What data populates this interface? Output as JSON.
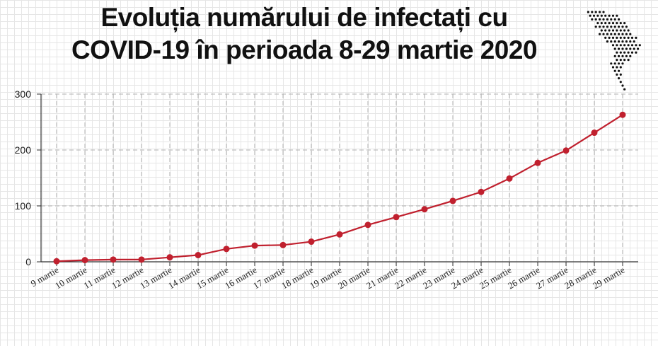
{
  "title": {
    "line1": "Evoluția numărului de infectați cu",
    "line2": "COVID-19 în perioada 8-29 martie 2020"
  },
  "icons": {
    "map": "moldova-dotted-map-icon"
  },
  "colors": {
    "line": "#c0202e",
    "axis": "#333333",
    "grid": "#b0b0b0"
  },
  "chart_data": {
    "type": "line",
    "title": "Evoluția numărului de infectați cu COVID-19 în perioada 8-29 martie 2020",
    "xlabel": "",
    "ylabel": "",
    "categories": [
      "9 martie",
      "10 martie",
      "11 martie",
      "12 martie",
      "13 martie",
      "14 martie",
      "15 martie",
      "16 martie",
      "17 martie",
      "18 martie",
      "19 martie",
      "20 martie",
      "21 martie",
      "22 martie",
      "23 martie",
      "24 martie",
      "25 martie",
      "26 martie",
      "27 martie",
      "28 martie",
      "29 martie"
    ],
    "series": [
      {
        "values": [
          1,
          3,
          4,
          4,
          8,
          12,
          23,
          29,
          30,
          36,
          49,
          66,
          80,
          94,
          109,
          125,
          149,
          177,
          199,
          231,
          263
        ]
      }
    ],
    "ylim": [
      0,
      300
    ],
    "yticks": [
      0,
      100,
      200,
      300
    ],
    "grid": true,
    "legend": "none"
  }
}
